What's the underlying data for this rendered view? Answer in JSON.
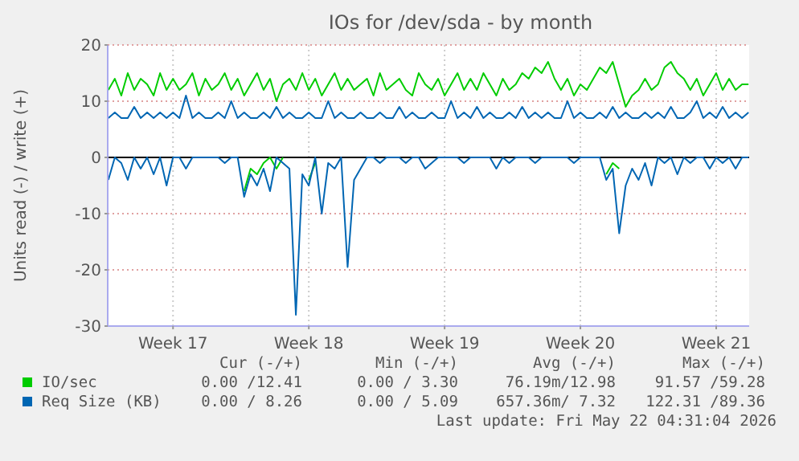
{
  "chart_data": {
    "type": "line",
    "title": "IOs for /dev/sda - by month",
    "ylabel": "Units read (-) / write (+)",
    "categories": [
      null,
      null,
      null,
      null,
      null,
      null,
      null,
      null,
      null,
      null,
      "Week 17",
      null,
      null,
      null,
      null,
      null,
      null,
      null,
      null,
      null,
      null,
      null,
      null,
      null,
      null,
      null,
      null,
      null,
      null,
      null,
      null,
      "Week 18",
      null,
      null,
      null,
      null,
      null,
      null,
      null,
      null,
      null,
      null,
      null,
      null,
      null,
      null,
      null,
      null,
      null,
      null,
      null,
      null,
      "Week 19",
      null,
      null,
      null,
      null,
      null,
      null,
      null,
      null,
      null,
      null,
      null,
      null,
      null,
      null,
      null,
      null,
      null,
      null,
      null,
      null,
      "Week 20",
      null,
      null,
      null,
      null,
      null,
      null,
      null,
      null,
      null,
      null,
      null,
      null,
      null,
      null,
      null,
      null,
      null,
      null,
      null,
      null,
      "Week 21",
      null,
      null,
      null,
      null,
      null
    ],
    "ylim": [
      -30,
      20
    ],
    "yticks": [
      -30,
      -20,
      -10,
      0,
      10,
      20
    ],
    "grid": true,
    "legend": "bottom",
    "ref_lines": [
      {
        "axis": "y",
        "value": 0,
        "color": "#000000"
      }
    ],
    "series": [
      {
        "name": "IO/sec",
        "color": "#00cc00",
        "values": [
          12,
          14,
          11,
          15,
          12,
          14,
          13,
          11,
          15,
          12,
          14,
          12,
          13,
          15,
          11,
          14,
          12,
          13,
          15,
          12,
          14,
          11,
          13,
          15,
          12,
          14,
          10,
          13,
          14,
          12,
          15,
          12,
          14,
          11,
          13,
          15,
          12,
          14,
          12,
          13,
          14,
          11,
          15,
          12,
          13,
          14,
          12,
          11,
          15,
          13,
          12,
          14,
          11,
          13,
          15,
          12,
          14,
          12,
          15,
          13,
          11,
          14,
          12,
          13,
          15,
          14,
          16,
          15,
          17,
          14,
          12,
          14,
          11,
          13,
          12,
          14,
          16,
          15,
          17,
          13,
          9,
          11,
          12,
          14,
          12,
          13,
          16,
          17,
          15,
          14,
          12,
          14,
          11,
          13,
          15,
          12,
          14,
          12,
          13,
          13
        ]
      },
      {
        "name": "Req Size (KB)",
        "color": "#0066b3",
        "values": [
          7,
          8,
          7,
          7,
          9,
          7,
          8,
          7,
          8,
          7,
          8,
          7,
          11,
          7,
          8,
          7,
          7,
          8,
          7,
          10,
          7,
          8,
          7,
          7,
          8,
          7,
          9,
          7,
          8,
          7,
          7,
          8,
          7,
          7,
          10,
          7,
          8,
          7,
          7,
          8,
          7,
          7,
          8,
          7,
          7,
          9,
          7,
          8,
          7,
          7,
          8,
          7,
          7,
          10,
          7,
          8,
          7,
          9,
          7,
          8,
          7,
          7,
          8,
          7,
          9,
          7,
          8,
          7,
          8,
          7,
          7,
          10,
          7,
          8,
          7,
          7,
          8,
          7,
          9,
          7,
          8,
          7,
          7,
          8,
          7,
          8,
          7,
          9,
          7,
          7,
          8,
          10,
          7,
          8,
          7,
          9,
          7,
          8,
          7,
          8
        ]
      },
      {
        "color": "#00cc00",
        "values": [
          null,
          null,
          null,
          null,
          null,
          null,
          null,
          null,
          null,
          null,
          null,
          null,
          null,
          null,
          null,
          null,
          null,
          null,
          null,
          null,
          null,
          -6,
          -2,
          -3,
          -1,
          0,
          -2,
          0,
          null,
          null,
          null,
          -4,
          -1,
          null,
          null,
          null,
          null,
          null,
          null,
          null,
          null,
          null,
          null,
          null,
          null,
          null,
          null,
          null,
          null,
          null,
          null,
          null,
          null,
          null,
          null,
          null,
          null,
          null,
          null,
          null,
          null,
          null,
          null,
          null,
          null,
          null,
          null,
          null,
          null,
          null,
          null,
          null,
          null,
          null,
          null,
          null,
          null,
          -3,
          -1,
          -2,
          null,
          null,
          null,
          null,
          null,
          null,
          null,
          null,
          null,
          null,
          null,
          null,
          null,
          null,
          null,
          null,
          null,
          null,
          null,
          null
        ]
      },
      {
        "color": "#0066b3",
        "values": [
          -4,
          0,
          -1,
          -4,
          0,
          -2,
          0,
          -3,
          0,
          -5,
          0,
          0,
          -2,
          0,
          0,
          0,
          0,
          0,
          -1,
          0,
          0,
          -7,
          -3,
          -5,
          -2,
          -6,
          0,
          -1,
          -2,
          -28,
          -3,
          -5,
          0,
          -10,
          -1,
          -2,
          0,
          -19.5,
          -4,
          -2,
          0,
          0,
          -1,
          0,
          0,
          0,
          -1,
          0,
          0,
          -2,
          -1,
          0,
          0,
          0,
          0,
          -1,
          0,
          0,
          0,
          0,
          -2,
          0,
          -1,
          0,
          0,
          0,
          -1,
          0,
          0,
          0,
          0,
          0,
          -1,
          0,
          0,
          0,
          0,
          -4,
          -2,
          -13.5,
          -5,
          -2,
          -4,
          -1,
          -5,
          0,
          -1,
          0,
          -3,
          0,
          -1,
          0,
          0,
          -2,
          0,
          -1,
          0,
          -2,
          0,
          0
        ]
      }
    ],
    "annotations": [
      "Cur (-/+)",
      "Min (-/+)",
      "Avg (-/+)",
      "Max (-/+)",
      "0.00 /12.41",
      "0.00 / 3.30",
      "76.19m/12.98",
      "91.57 /59.28",
      "0.00 / 8.26",
      "0.00 / 5.09",
      "657.36m/ 7.32",
      "122.31 /89.36",
      "Last update: Fri May 22 04:31:04 2026"
    ]
  }
}
